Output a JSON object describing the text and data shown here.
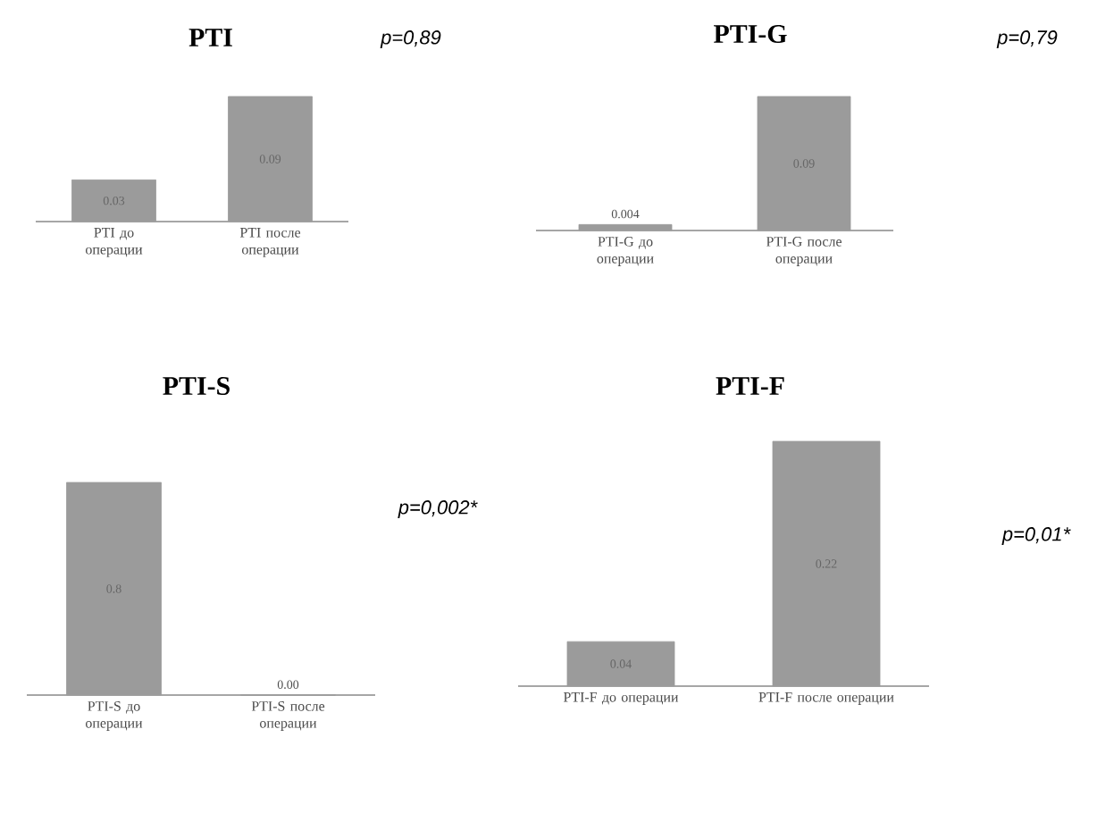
{
  "chart_data": [
    {
      "type": "bar",
      "title": "PTI",
      "categories": [
        "PTI до операции",
        "PTI после операции"
      ],
      "values": [
        0.03,
        0.09
      ],
      "data_labels": true,
      "color": "#9b9b9b",
      "annotations": [
        "p=0,89"
      ]
    },
    {
      "type": "bar",
      "title": "PTI-G",
      "categories": [
        "PTI-G до операции",
        "PTI-G после операции"
      ],
      "values": [
        0.004,
        0.09
      ],
      "data_labels": true,
      "color": "#9b9b9b",
      "annotations": [
        "p=0,79"
      ]
    },
    {
      "type": "bar",
      "title": "PTI-S",
      "categories": [
        "PTI-S до операции",
        "PTI-S после операции"
      ],
      "values": [
        0.8,
        0.0
      ],
      "value_labels": [
        "0.8",
        "0.00"
      ],
      "color": "#9b9b9b",
      "annotations": [
        "p=0,002*"
      ]
    },
    {
      "type": "bar",
      "title": "PTI-F",
      "categories": [
        "PTI-F до операции",
        "PTI-F после операции"
      ],
      "values": [
        0.04,
        0.22
      ],
      "data_labels": true,
      "color": "#9b9b9b",
      "annotations": [
        "p=0,01*"
      ]
    }
  ]
}
